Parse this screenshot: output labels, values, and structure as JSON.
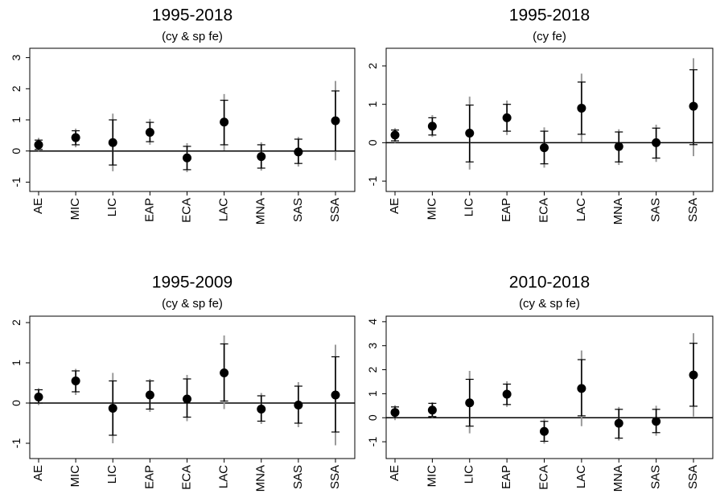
{
  "chart_data": [
    {
      "type": "errorbar",
      "title": "1995-2018",
      "subtitle": "(cy & sp fe)",
      "categories": [
        "AE",
        "MIC",
        "LIC",
        "EAP",
        "ECA",
        "LAC",
        "MNA",
        "SAS",
        "SSA"
      ],
      "values": [
        0.2,
        0.43,
        0.27,
        0.6,
        -0.22,
        0.93,
        -0.18,
        -0.03,
        0.97
      ],
      "inner_lo": [
        0.05,
        0.2,
        -0.45,
        0.3,
        -0.6,
        0.2,
        -0.55,
        -0.4,
        0
      ],
      "inner_hi": [
        0.35,
        0.65,
        1.0,
        0.92,
        0.15,
        1.63,
        0.2,
        0.38,
        1.93
      ],
      "outer_lo": [
        0,
        0.12,
        -0.65,
        0.2,
        -0.68,
        0.02,
        -0.63,
        -0.5,
        -0.3
      ],
      "outer_hi": [
        0.42,
        0.72,
        1.2,
        1.03,
        0.25,
        1.83,
        0.28,
        0.45,
        2.25
      ],
      "ylim": [
        -1.3,
        3.3
      ],
      "yticks": [
        -1,
        0,
        1,
        2,
        3
      ],
      "refline": 0,
      "color": "#000000",
      "outer_color": "#999999"
    },
    {
      "type": "errorbar",
      "title": "1995-2018",
      "subtitle": "(cy fe)",
      "categories": [
        "AE",
        "MIC",
        "LIC",
        "EAP",
        "ECA",
        "LAC",
        "MNA",
        "SAS",
        "SSA"
      ],
      "values": [
        0.2,
        0.43,
        0.25,
        0.65,
        -0.13,
        0.9,
        -0.1,
        0,
        0.95
      ],
      "inner_lo": [
        0.05,
        0.2,
        -0.5,
        0.3,
        -0.55,
        0.22,
        -0.5,
        -0.4,
        -0.05
      ],
      "inner_hi": [
        0.33,
        0.65,
        0.98,
        1.0,
        0.3,
        1.58,
        0.28,
        0.38,
        1.9
      ],
      "outer_lo": [
        0,
        0.15,
        -0.7,
        0.2,
        -0.65,
        0.02,
        -0.58,
        -0.5,
        -0.35
      ],
      "outer_hi": [
        0.38,
        0.72,
        1.2,
        1.1,
        0.4,
        1.8,
        0.35,
        0.47,
        2.2
      ],
      "ylim": [
        -1.27,
        2.46
      ],
      "yticks": [
        -1,
        0,
        1,
        2
      ],
      "refline": 0,
      "color": "#000000",
      "outer_color": "#999999"
    },
    {
      "type": "errorbar",
      "title": "1995-2009",
      "subtitle": "(cy & sp fe)",
      "categories": [
        "AE",
        "MIC",
        "LIC",
        "EAP",
        "ECA",
        "LAC",
        "MNA",
        "SAS",
        "SSA"
      ],
      "values": [
        0.15,
        0.55,
        -0.13,
        0.2,
        0.1,
        0.75,
        -0.15,
        -0.05,
        0.2
      ],
      "inner_lo": [
        0,
        0.28,
        -0.8,
        -0.15,
        -0.35,
        0.05,
        -0.45,
        -0.5,
        -0.72
      ],
      "inner_hi": [
        0.33,
        0.8,
        0.55,
        0.55,
        0.6,
        1.47,
        0.18,
        0.42,
        1.15
      ],
      "outer_lo": [
        -0.05,
        0.2,
        -1.0,
        -0.22,
        -0.45,
        -0.15,
        -0.52,
        -0.6,
        -1.05
      ],
      "outer_hi": [
        0.37,
        0.85,
        0.75,
        0.6,
        0.7,
        1.68,
        0.25,
        0.52,
        1.45
      ],
      "ylim": [
        -1.38,
        2.16
      ],
      "yticks": [
        -1,
        0,
        1,
        2
      ],
      "refline": 0,
      "color": "#000000",
      "outer_color": "#999999"
    },
    {
      "type": "errorbar",
      "title": "2010-2018",
      "subtitle": "(cy & sp fe)",
      "categories": [
        "AE",
        "MIC",
        "LIC",
        "EAP",
        "ECA",
        "LAC",
        "MNA",
        "SAS",
        "SSA"
      ],
      "values": [
        0.22,
        0.32,
        0.62,
        0.98,
        -0.57,
        1.22,
        -0.23,
        -0.15,
        1.78
      ],
      "inner_lo": [
        0,
        0.05,
        -0.35,
        0.55,
        -0.98,
        0.08,
        -0.85,
        -0.62,
        0.48
      ],
      "inner_hi": [
        0.45,
        0.6,
        1.6,
        1.4,
        -0.15,
        2.42,
        0.35,
        0.35,
        3.1
      ],
      "outer_lo": [
        -0.1,
        0,
        -0.65,
        0.45,
        -1.08,
        -0.35,
        -0.95,
        -0.75,
        0.05
      ],
      "outer_hi": [
        0.52,
        0.65,
        1.95,
        1.52,
        -0.05,
        2.8,
        0.45,
        0.5,
        3.52
      ],
      "ylim": [
        -1.7,
        4.23
      ],
      "yticks": [
        -1,
        0,
        1,
        2,
        3,
        4
      ],
      "refline": 0,
      "color": "#000000",
      "outer_color": "#999999"
    }
  ]
}
